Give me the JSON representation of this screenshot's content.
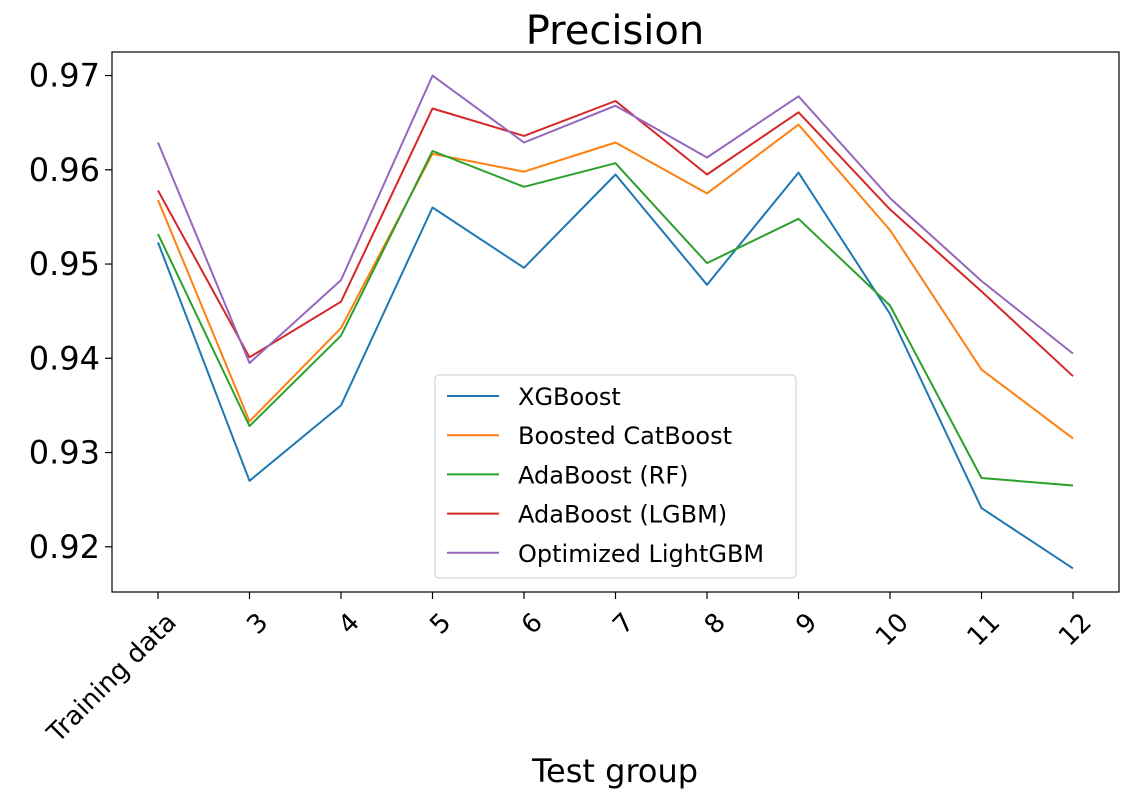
{
  "chart_data": {
    "type": "line",
    "title": "Precision",
    "xlabel": "Test group",
    "ylabel": "",
    "categories": [
      "Training data",
      "3",
      "4",
      "5",
      "6",
      "7",
      "8",
      "9",
      "10",
      "11",
      "12"
    ],
    "ylim": [
      0.9152,
      0.9725
    ],
    "yticks": [
      0.92,
      0.93,
      0.94,
      0.95,
      0.96,
      0.97
    ],
    "ytick_labels": [
      "0.92",
      "0.93",
      "0.94",
      "0.95",
      "0.96",
      "0.97"
    ],
    "grid": false,
    "legend_position": "bottom-center",
    "series": [
      {
        "name": "XGBoost",
        "color": "#1f77b4",
        "values": [
          0.9523,
          0.927,
          0.935,
          0.956,
          0.9496,
          0.9595,
          0.9478,
          0.9597,
          0.9447,
          0.9241,
          0.9177
        ]
      },
      {
        "name": "Boosted CatBoost",
        "color": "#ff7f0e",
        "values": [
          0.9568,
          0.9333,
          0.9432,
          0.9617,
          0.9598,
          0.9629,
          0.9575,
          0.9648,
          0.9536,
          0.9388,
          0.9315
        ]
      },
      {
        "name": "AdaBoost (RF)",
        "color": "#2ca02c",
        "values": [
          0.9532,
          0.9328,
          0.9424,
          0.962,
          0.9582,
          0.9607,
          0.9501,
          0.9548,
          0.9456,
          0.9273,
          0.9265
        ]
      },
      {
        "name": "AdaBoost (LGBM)",
        "color": "#d62728",
        "values": [
          0.9578,
          0.9401,
          0.946,
          0.9665,
          0.9636,
          0.9673,
          0.9595,
          0.9661,
          0.9558,
          0.9471,
          0.9381
        ]
      },
      {
        "name": "Optimized LightGBM",
        "color": "#9467bd",
        "values": [
          0.9629,
          0.9395,
          0.9483,
          0.97,
          0.9629,
          0.9668,
          0.9613,
          0.9678,
          0.957,
          0.9482,
          0.9405
        ]
      }
    ]
  }
}
